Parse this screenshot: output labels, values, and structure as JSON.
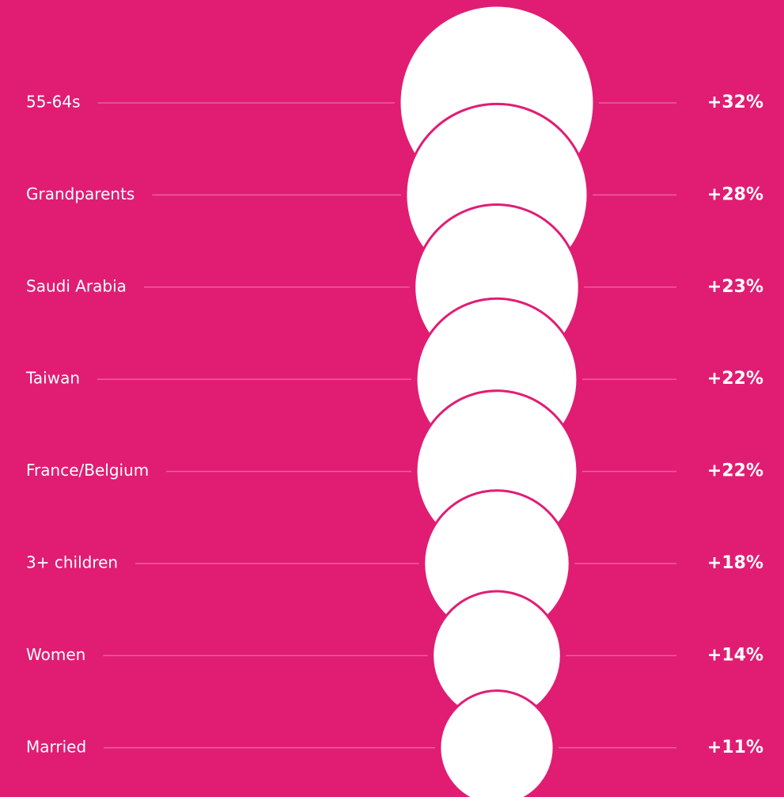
{
  "chart_data": {
    "type": "bubble",
    "categories": [
      "55-64s",
      "Grandparents",
      "Saudi Arabia",
      "Taiwan",
      "France/Belgium",
      "3+ children",
      "Women",
      "Married"
    ],
    "values": [
      32,
      28,
      23,
      22,
      22,
      18,
      14,
      11
    ],
    "value_labels": [
      "+32%",
      "+28%",
      "+23%",
      "+22%",
      "+22%",
      "+18%",
      "+14%",
      "+11%"
    ],
    "color": "#ffffff"
  }
}
